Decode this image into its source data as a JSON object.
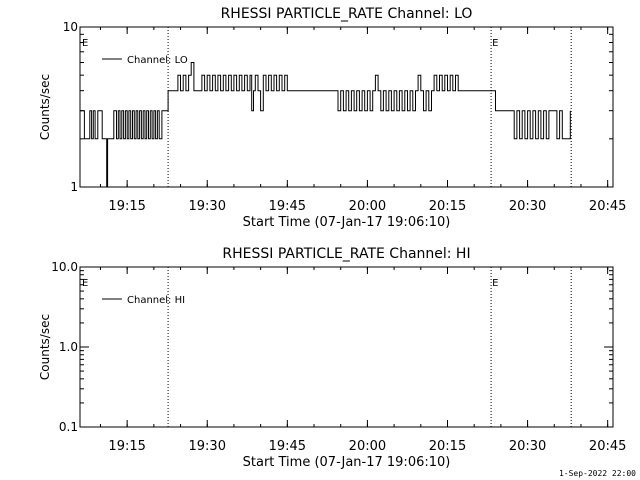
{
  "footer_text": "1-Sep-2022 22:00",
  "chart_data": [
    {
      "type": "line",
      "title": "RHESSI PARTICLE_RATE Channel: LO",
      "xlabel": "Start Time (07-Jan-17 19:06:10)",
      "ylabel": "Counts/sec",
      "y_scale": "log",
      "ylim": [
        1,
        10
      ],
      "y_ticks": [
        "10",
        "1"
      ],
      "xlim": [
        "19:06:10",
        "20:46:00"
      ],
      "x_ticks": [
        "19:15",
        "19:30",
        "19:45",
        "20:00",
        "20:15",
        "20:30",
        "20:45"
      ],
      "markers": [
        {
          "time": "19:22:40",
          "label": ""
        },
        {
          "time": "20:23:10",
          "label": "E"
        },
        {
          "time": "20:38:10",
          "label": ""
        }
      ],
      "left_marker_label": "E",
      "legend": {
        "placement": "top-left",
        "label": "Channel: LO"
      },
      "series": [
        {
          "name": "Channel: LO",
          "points": [
            [
              "19:06:10",
              3
            ],
            [
              "19:06:40",
              3
            ],
            [
              "19:07:00",
              2
            ],
            [
              "19:07:30",
              2
            ],
            [
              "19:08:00",
              3
            ],
            [
              "19:08:20",
              2
            ],
            [
              "19:08:40",
              3
            ],
            [
              "19:09:00",
              2
            ],
            [
              "19:09:30",
              3
            ],
            [
              "19:10:00",
              3
            ],
            [
              "19:10:20",
              2
            ],
            [
              "19:11:00",
              2
            ],
            [
              "19:11:10",
              1
            ],
            [
              "19:11:20",
              2
            ],
            [
              "19:12:00",
              2
            ],
            [
              "19:12:30",
              3
            ],
            [
              "19:13:00",
              2
            ],
            [
              "19:13:20",
              3
            ],
            [
              "19:13:40",
              2
            ],
            [
              "19:14:00",
              3
            ],
            [
              "19:14:20",
              2
            ],
            [
              "19:14:40",
              3
            ],
            [
              "19:15:00",
              2
            ],
            [
              "19:15:20",
              3
            ],
            [
              "19:15:40",
              2
            ],
            [
              "19:16:00",
              3
            ],
            [
              "19:16:20",
              2
            ],
            [
              "19:16:40",
              3
            ],
            [
              "19:17:00",
              2
            ],
            [
              "19:17:20",
              3
            ],
            [
              "19:17:40",
              2
            ],
            [
              "19:18:00",
              3
            ],
            [
              "19:18:20",
              2
            ],
            [
              "19:18:40",
              3
            ],
            [
              "19:19:00",
              2
            ],
            [
              "19:19:20",
              3
            ],
            [
              "19:19:40",
              2
            ],
            [
              "19:20:00",
              3
            ],
            [
              "19:20:20",
              2
            ],
            [
              "19:20:40",
              3
            ],
            [
              "19:21:00",
              2
            ],
            [
              "19:21:30",
              3
            ],
            [
              "19:22:00",
              3
            ],
            [
              "19:22:40",
              4
            ],
            [
              "19:23:30",
              4
            ],
            [
              "19:24:00",
              4
            ],
            [
              "19:24:30",
              5
            ],
            [
              "19:25:00",
              4
            ],
            [
              "19:25:30",
              5
            ],
            [
              "19:26:00",
              4
            ],
            [
              "19:26:30",
              5
            ],
            [
              "19:27:00",
              6
            ],
            [
              "19:27:30",
              4
            ],
            [
              "19:28:30",
              4
            ],
            [
              "19:29:00",
              5
            ],
            [
              "19:29:30",
              4
            ],
            [
              "19:30:00",
              5
            ],
            [
              "19:30:30",
              4
            ],
            [
              "19:31:00",
              5
            ],
            [
              "19:31:30",
              4
            ],
            [
              "19:32:00",
              5
            ],
            [
              "19:32:30",
              4
            ],
            [
              "19:33:00",
              5
            ],
            [
              "19:33:30",
              4
            ],
            [
              "19:34:00",
              5
            ],
            [
              "19:34:30",
              4
            ],
            [
              "19:35:00",
              5
            ],
            [
              "19:35:30",
              4
            ],
            [
              "19:36:00",
              5
            ],
            [
              "19:36:30",
              4
            ],
            [
              "19:37:00",
              5
            ],
            [
              "19:37:30",
              4
            ],
            [
              "19:38:00",
              5
            ],
            [
              "19:38:20",
              3
            ],
            [
              "19:38:40",
              4
            ],
            [
              "19:39:00",
              5
            ],
            [
              "19:39:30",
              4
            ],
            [
              "19:40:00",
              3
            ],
            [
              "19:40:30",
              5
            ],
            [
              "19:41:00",
              4
            ],
            [
              "19:41:30",
              5
            ],
            [
              "19:42:00",
              4
            ],
            [
              "19:42:30",
              5
            ],
            [
              "19:43:00",
              4
            ],
            [
              "19:43:30",
              5
            ],
            [
              "19:44:00",
              4
            ],
            [
              "19:44:30",
              5
            ],
            [
              "19:45:00",
              4
            ],
            [
              "19:46:00",
              4
            ],
            [
              "19:47:00",
              4
            ],
            [
              "19:48:00",
              4
            ],
            [
              "19:49:00",
              4
            ],
            [
              "19:50:00",
              4
            ],
            [
              "19:51:00",
              4
            ],
            [
              "19:52:00",
              4
            ],
            [
              "19:53:00",
              4
            ],
            [
              "19:54:00",
              4
            ],
            [
              "19:54:30",
              3
            ],
            [
              "19:55:00",
              4
            ],
            [
              "19:55:30",
              3
            ],
            [
              "19:56:00",
              4
            ],
            [
              "19:56:30",
              3
            ],
            [
              "19:57:00",
              4
            ],
            [
              "19:57:30",
              3
            ],
            [
              "19:58:00",
              4
            ],
            [
              "19:58:30",
              3
            ],
            [
              "19:59:00",
              4
            ],
            [
              "19:59:30",
              3
            ],
            [
              "20:00:00",
              4
            ],
            [
              "20:00:30",
              3
            ],
            [
              "20:01:00",
              4
            ],
            [
              "20:01:30",
              5
            ],
            [
              "20:02:00",
              4
            ],
            [
              "20:02:30",
              3
            ],
            [
              "20:03:00",
              4
            ],
            [
              "20:03:30",
              3
            ],
            [
              "20:04:00",
              4
            ],
            [
              "20:04:30",
              3
            ],
            [
              "20:05:00",
              4
            ],
            [
              "20:05:30",
              3
            ],
            [
              "20:06:00",
              4
            ],
            [
              "20:06:30",
              3
            ],
            [
              "20:07:00",
              4
            ],
            [
              "20:07:30",
              3
            ],
            [
              "20:08:00",
              4
            ],
            [
              "20:08:30",
              3
            ],
            [
              "20:09:00",
              4
            ],
            [
              "20:09:30",
              5
            ],
            [
              "20:10:00",
              4
            ],
            [
              "20:10:30",
              3
            ],
            [
              "20:11:00",
              4
            ],
            [
              "20:11:30",
              3
            ],
            [
              "20:12:00",
              4
            ],
            [
              "20:12:30",
              5
            ],
            [
              "20:13:00",
              4
            ],
            [
              "20:13:30",
              5
            ],
            [
              "20:14:00",
              4
            ],
            [
              "20:14:30",
              5
            ],
            [
              "20:15:00",
              4
            ],
            [
              "20:15:30",
              5
            ],
            [
              "20:16:00",
              4
            ],
            [
              "20:16:30",
              5
            ],
            [
              "20:17:00",
              4
            ],
            [
              "20:18:00",
              4
            ],
            [
              "20:19:00",
              4
            ],
            [
              "20:20:00",
              4
            ],
            [
              "20:21:00",
              4
            ],
            [
              "20:22:00",
              4
            ],
            [
              "20:23:10",
              4
            ],
            [
              "20:24:00",
              3
            ],
            [
              "20:25:00",
              3
            ],
            [
              "20:26:00",
              3
            ],
            [
              "20:27:00",
              3
            ],
            [
              "20:27:30",
              2
            ],
            [
              "20:28:00",
              3
            ],
            [
              "20:28:30",
              2
            ],
            [
              "20:29:00",
              3
            ],
            [
              "20:29:30",
              2
            ],
            [
              "20:30:00",
              3
            ],
            [
              "20:30:30",
              2
            ],
            [
              "20:31:00",
              3
            ],
            [
              "20:31:30",
              2
            ],
            [
              "20:32:00",
              3
            ],
            [
              "20:32:30",
              2
            ],
            [
              "20:33:00",
              3
            ],
            [
              "20:33:30",
              2
            ],
            [
              "20:34:00",
              3
            ],
            [
              "20:34:30",
              3
            ],
            [
              "20:35:00",
              3
            ],
            [
              "20:35:30",
              2
            ],
            [
              "20:36:00",
              3
            ],
            [
              "20:36:30",
              2
            ],
            [
              "20:37:00",
              2
            ],
            [
              "20:37:30",
              2
            ],
            [
              "20:38:00",
              3
            ]
          ]
        }
      ]
    },
    {
      "type": "line",
      "title": "RHESSI PARTICLE_RATE Channel: HI",
      "xlabel": "Start Time (07-Jan-17 19:06:10)",
      "ylabel": "Counts/sec",
      "y_scale": "log",
      "ylim": [
        0.1,
        10
      ],
      "y_ticks": [
        "10.0",
        "1.0",
        "0.1"
      ],
      "xlim": [
        "19:06:10",
        "20:46:00"
      ],
      "x_ticks": [
        "19:15",
        "19:30",
        "19:45",
        "20:00",
        "20:15",
        "20:30",
        "20:45"
      ],
      "markers": [
        {
          "time": "19:22:40",
          "label": ""
        },
        {
          "time": "20:23:10",
          "label": "E"
        },
        {
          "time": "20:38:10",
          "label": ""
        }
      ],
      "left_marker_label": "E",
      "legend": {
        "placement": "top-left",
        "label": "Channel: HI"
      },
      "series": [
        {
          "name": "Channel: HI",
          "points": []
        }
      ]
    }
  ]
}
